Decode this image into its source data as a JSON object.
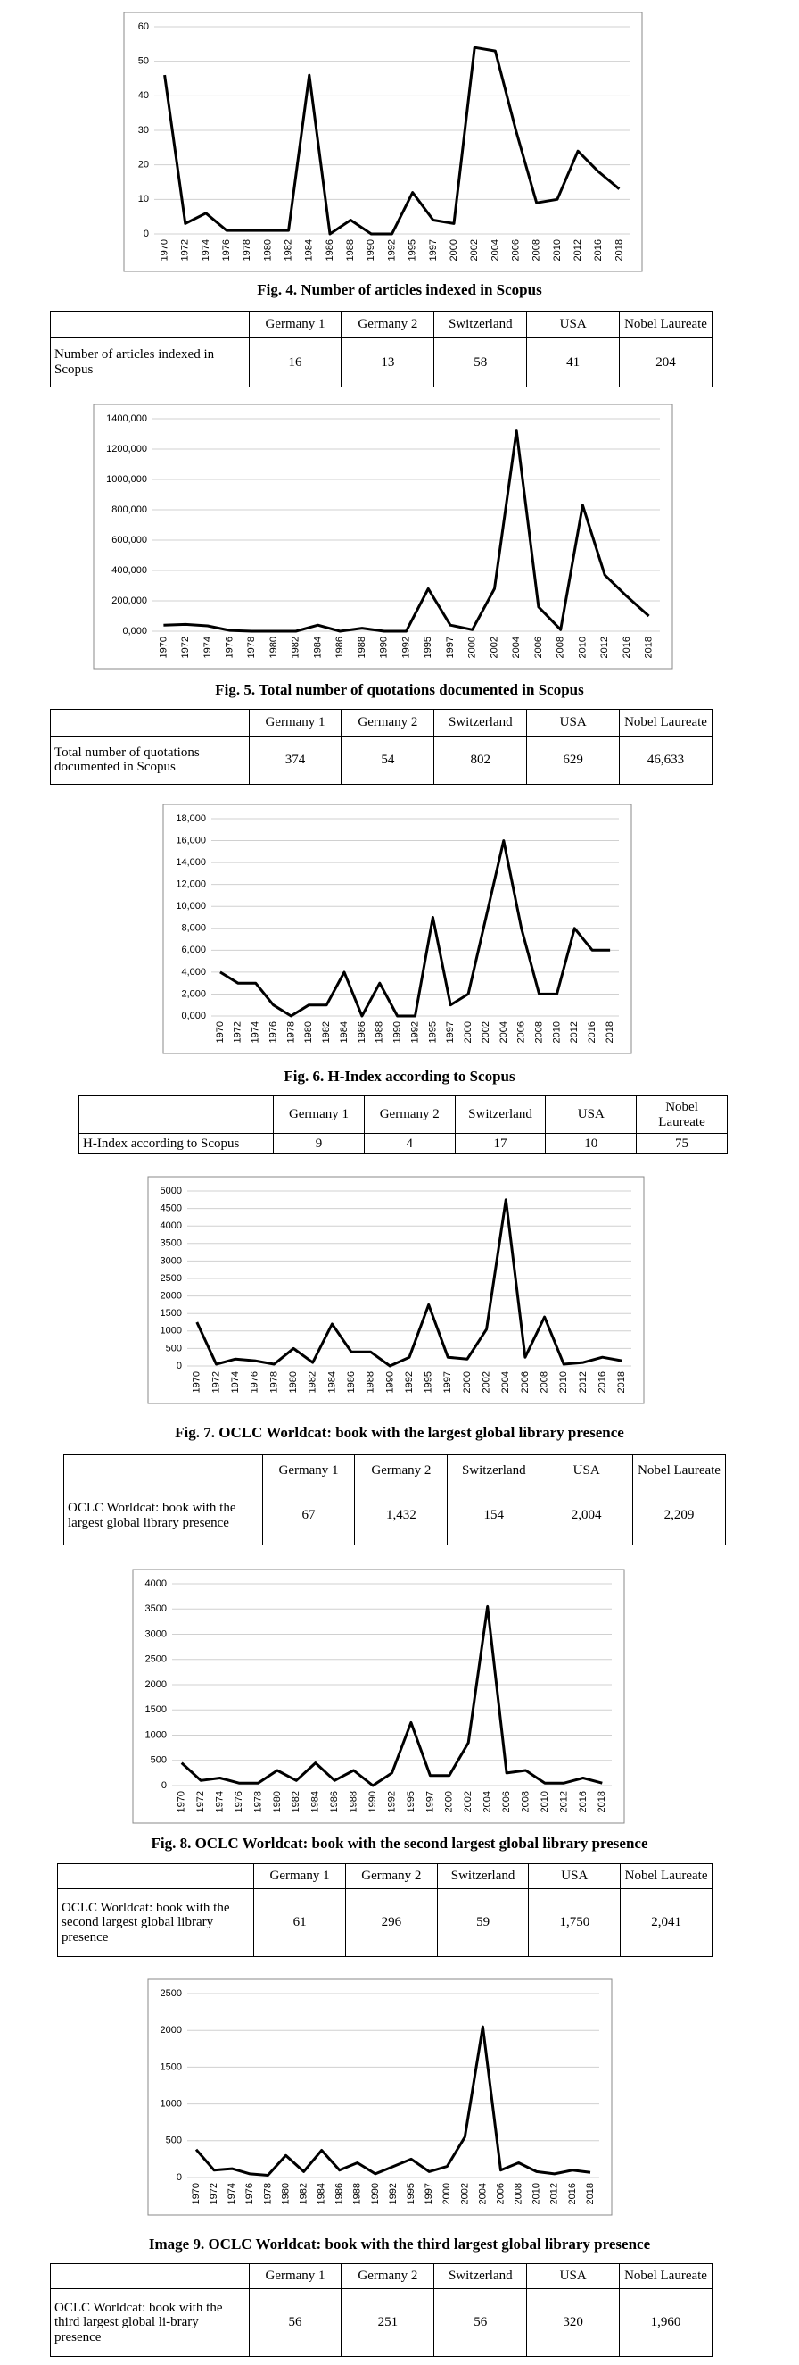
{
  "chart_data": [
    {
      "type": "line",
      "title": "Fig. 4. Number of articles indexed in Scopus",
      "color": "#000000",
      "grid": true,
      "categories": [
        "1970",
        "1972",
        "1974",
        "1976",
        "1978",
        "1980",
        "1982",
        "1984",
        "1986",
        "1988",
        "1990",
        "1992",
        "1995",
        "1997",
        "2000",
        "2002",
        "2004",
        "2006",
        "2008",
        "2010",
        "2012",
        "2016",
        "2018"
      ],
      "values": [
        46,
        3,
        6,
        1,
        1,
        1,
        1,
        46,
        0,
        4,
        0,
        0,
        12,
        4,
        3,
        54,
        53,
        30,
        9,
        10,
        24,
        18,
        13
      ],
      "ylim": [
        0,
        60
      ],
      "yticks": [
        0,
        10,
        20,
        30,
        40,
        50,
        60
      ]
    },
    {
      "type": "line",
      "title": "Fig. 5. Total number of quotations documented in Scopus",
      "color": "#000000",
      "grid": true,
      "categories": [
        "1970",
        "1972",
        "1974",
        "1976",
        "1978",
        "1980",
        "1982",
        "1984",
        "1986",
        "1988",
        "1990",
        "1992",
        "1995",
        "1997",
        "2000",
        "2002",
        "2004",
        "2006",
        "2008",
        "2010",
        "2012",
        "2016",
        "2018"
      ],
      "values": [
        40000,
        45000,
        35000,
        5000,
        0,
        0,
        0,
        40000,
        0,
        20000,
        0,
        0,
        280000,
        40000,
        10000,
        280000,
        1320000,
        160000,
        10000,
        830000,
        370000,
        230000,
        100000
      ],
      "ylim": [
        0,
        1400000
      ],
      "yticks": [
        {
          "value": 0,
          "label": "0,000"
        },
        {
          "value": 200000,
          "label": "200,000"
        },
        {
          "value": 400000,
          "label": "400,000"
        },
        {
          "value": 600000,
          "label": "600,000"
        },
        {
          "value": 800000,
          "label": "800,000"
        },
        {
          "value": 1000000,
          "label": "1000,000"
        },
        {
          "value": 1200000,
          "label": "1200,000"
        },
        {
          "value": 1400000,
          "label": "1400,000"
        }
      ]
    },
    {
      "type": "line",
      "title": "Fig. 6. H-Index according to Scopus",
      "color": "#000000",
      "grid": true,
      "categories": [
        "1970",
        "1972",
        "1974",
        "1976",
        "1978",
        "1980",
        "1982",
        "1984",
        "1986",
        "1988",
        "1990",
        "1992",
        "1995",
        "1997",
        "2000",
        "2002",
        "2004",
        "2006",
        "2008",
        "2010",
        "2012",
        "2016",
        "2018"
      ],
      "values": [
        4000,
        3000,
        3000,
        1000,
        0,
        1000,
        1000,
        4000,
        0,
        3000,
        0,
        0,
        9000,
        1000,
        2000,
        9000,
        16000,
        8000,
        2000,
        2000,
        8000,
        6000,
        6000
      ],
      "ylim": [
        0,
        18000
      ],
      "yticks": [
        {
          "value": 0,
          "label": "0,000"
        },
        {
          "value": 2000,
          "label": "2,000"
        },
        {
          "value": 4000,
          "label": "4,000"
        },
        {
          "value": 6000,
          "label": "6,000"
        },
        {
          "value": 8000,
          "label": "8,000"
        },
        {
          "value": 10000,
          "label": "10,000"
        },
        {
          "value": 12000,
          "label": "12,000"
        },
        {
          "value": 14000,
          "label": "14,000"
        },
        {
          "value": 16000,
          "label": "16,000"
        },
        {
          "value": 18000,
          "label": "18,000"
        }
      ]
    },
    {
      "type": "line",
      "title": "Fig. 7. OCLC Worldcat: book with the largest global library presence",
      "color": "#000000",
      "grid": true,
      "categories": [
        "1970",
        "1972",
        "1974",
        "1976",
        "1978",
        "1980",
        "1982",
        "1984",
        "1986",
        "1988",
        "1990",
        "1992",
        "1995",
        "1997",
        "2000",
        "2002",
        "2004",
        "2006",
        "2008",
        "2010",
        "2012",
        "2016",
        "2018"
      ],
      "values": [
        1250,
        50,
        200,
        150,
        50,
        500,
        100,
        1200,
        400,
        400,
        0,
        250,
        1750,
        250,
        200,
        1050,
        4750,
        250,
        1400,
        50,
        100,
        250,
        150
      ],
      "ylim": [
        0,
        5000
      ],
      "yticks": [
        0,
        500,
        1000,
        1500,
        2000,
        2500,
        3000,
        3500,
        4000,
        4500,
        5000
      ]
    },
    {
      "type": "line",
      "title": "Fig. 8. OCLC Worldcat: book with the second largest global library presence",
      "color": "#000000",
      "grid": true,
      "categories": [
        "1970",
        "1972",
        "1974",
        "1976",
        "1978",
        "1980",
        "1982",
        "1984",
        "1986",
        "1988",
        "1990",
        "1992",
        "1995",
        "1997",
        "2000",
        "2002",
        "2004",
        "2006",
        "2008",
        "2010",
        "2012",
        "2016",
        "2018"
      ],
      "values": [
        450,
        100,
        150,
        50,
        50,
        300,
        100,
        450,
        100,
        300,
        0,
        250,
        1250,
        200,
        200,
        850,
        3550,
        250,
        300,
        50,
        50,
        150,
        50
      ],
      "ylim": [
        0,
        4000
      ],
      "yticks": [
        0,
        500,
        1000,
        1500,
        2000,
        2500,
        3000,
        3500,
        4000
      ]
    },
    {
      "type": "line",
      "title": "Image 9. OCLC Worldcat: book with the third largest global library presence",
      "color": "#000000",
      "grid": true,
      "categories": [
        "1970",
        "1972",
        "1974",
        "1976",
        "1978",
        "1980",
        "1982",
        "1984",
        "1986",
        "1988",
        "1990",
        "1992",
        "1995",
        "1997",
        "2000",
        "2002",
        "2004",
        "2006",
        "2008",
        "2010",
        "2012",
        "2016",
        "2018"
      ],
      "values": [
        380,
        100,
        120,
        50,
        30,
        300,
        80,
        370,
        100,
        200,
        50,
        150,
        250,
        80,
        150,
        550,
        2050,
        100,
        200,
        80,
        50,
        100,
        70
      ],
      "ylim": [
        0,
        2500
      ],
      "yticks": [
        0,
        500,
        1000,
        1500,
        2000,
        2500
      ]
    }
  ],
  "tables": [
    {
      "header": [
        "Germany 1",
        "Germany 2",
        "Switzerland",
        "USA",
        "Nobel Laureate"
      ],
      "row_label": "Number of articles indexed in Scopus",
      "values": [
        "16",
        "13",
        "58",
        "41",
        "204"
      ]
    },
    {
      "header": [
        "Germany 1",
        "Germany 2",
        "Switzerland",
        "USA",
        "Nobel Laureate"
      ],
      "row_label": "Total number of quotations documented in Scopus",
      "values": [
        "374",
        "54",
        "802",
        "629",
        "46,633"
      ]
    },
    {
      "header": [
        "Germany 1",
        "Germany 2",
        "Switzerland",
        "USA",
        "Nobel Laureate"
      ],
      "row_label": "H-Index according to Scopus",
      "values": [
        "9",
        "4",
        "17",
        "10",
        "75"
      ]
    },
    {
      "header": [
        "Germany 1",
        "Germany 2",
        "Switzerland",
        "USA",
        "Nobel Laureate"
      ],
      "row_label": "OCLC Worldcat: book with the largest global library presence",
      "values": [
        "67",
        "1,432",
        "154",
        "2,004",
        "2,209"
      ]
    },
    {
      "header": [
        "Germany 1",
        "Germany 2",
        "Switzerland",
        "USA",
        "Nobel Laureate"
      ],
      "row_label": "OCLC Worldcat: book with the second largest global library presence",
      "values": [
        "61",
        "296",
        "59",
        "1,750",
        "2,041"
      ]
    },
    {
      "header": [
        "Germany 1",
        "Germany 2",
        "Switzerland",
        "USA",
        "Nobel Laureate"
      ],
      "row_label": "OCLC Worldcat: book with the third largest global li-brary presence",
      "values": [
        "56",
        "251",
        "56",
        "320",
        "1,960"
      ]
    }
  ]
}
